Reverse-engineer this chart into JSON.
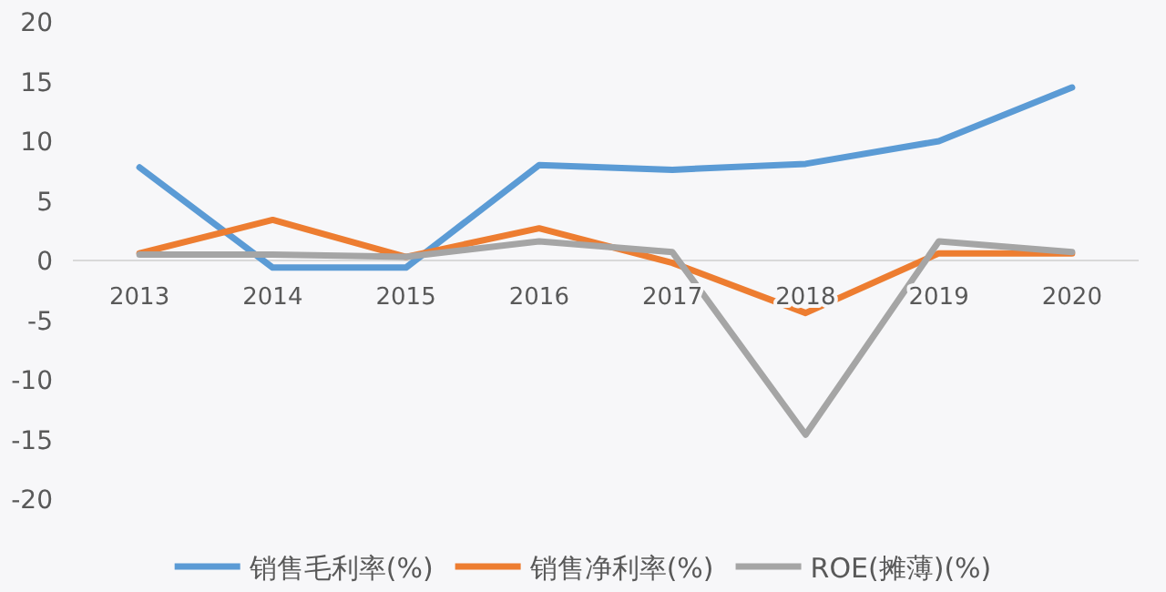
{
  "chart_data": {
    "type": "line",
    "categories": [
      "2013",
      "2014",
      "2015",
      "2016",
      "2017",
      "2018",
      "2019",
      "2020"
    ],
    "series": [
      {
        "name": "销售毛利率(%)",
        "color": "#5b9bd5",
        "values": [
          7.8,
          -0.6,
          -0.6,
          8.0,
          7.6,
          8.1,
          10.0,
          14.5
        ]
      },
      {
        "name": "销售净利率(%)",
        "color": "#ed7d31",
        "values": [
          0.6,
          3.4,
          0.3,
          2.7,
          -0.2,
          -4.4,
          0.6,
          0.6
        ]
      },
      {
        "name": "ROE(摊薄)(%)",
        "color": "#a5a5a5",
        "values": [
          0.5,
          0.5,
          0.3,
          1.6,
          0.7,
          -14.6,
          1.6,
          0.7
        ]
      }
    ],
    "ylim": [
      -20,
      20
    ],
    "yticks": [
      -20,
      -15,
      -10,
      -5,
      0,
      5,
      10,
      15,
      20
    ],
    "grid": false,
    "legend": "bottom",
    "marker": "none",
    "line_style": "solid"
  }
}
